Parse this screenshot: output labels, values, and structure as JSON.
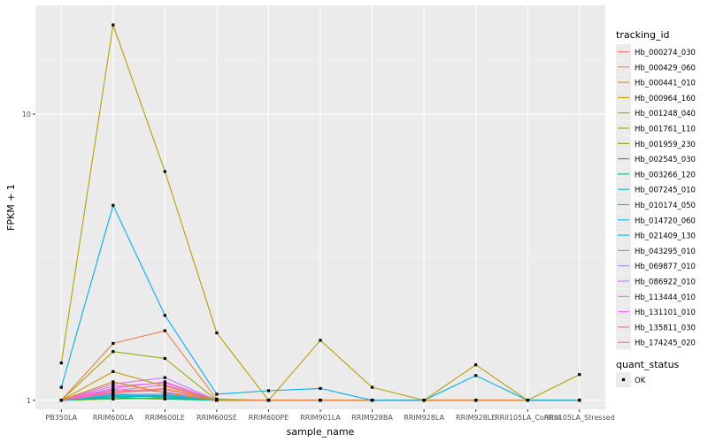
{
  "chart_data": {
    "type": "line",
    "title": "",
    "xlabel": "sample_name",
    "ylabel": "FPKM + 1",
    "y_scale": "log10",
    "ylim": [
      0.93,
      24
    ],
    "y_ticks": [
      1,
      10
    ],
    "y_tick_labels": [
      "1",
      "10"
    ],
    "grid": true,
    "legend_position": "right",
    "categories": [
      "PB350LA",
      "RRIM600LA",
      "RRIM600LE",
      "RRIM600SE",
      "RRIM600PE",
      "RRIM901LA",
      "RRIM928BA",
      "RRIM928LA",
      "RRIM928LE",
      "RRII105LA_Control",
      "RRII105LA_Stressed"
    ],
    "legend_title": "tracking_id",
    "legend_items": [
      {
        "name": "Hb_000274_030",
        "color": "#F8766D"
      },
      {
        "name": "Hb_000429_060",
        "color": "#EE8043"
      },
      {
        "name": "Hb_000441_010",
        "color": "#E18A00"
      },
      {
        "name": "Hb_000964_160",
        "color": "#CC9600"
      },
      {
        "name": "Hb_001248_040",
        "color": "#B4A000"
      },
      {
        "name": "Hb_001761_110",
        "color": "#98A900"
      },
      {
        "name": "Hb_001959_230",
        "color": "#72B000"
      },
      {
        "name": "Hb_002545_030",
        "color": "#00B64B"
      },
      {
        "name": "Hb_003266_120",
        "color": "#00BB83"
      },
      {
        "name": "Hb_007245_010",
        "color": "#00BEAA"
      },
      {
        "name": "Hb_010174_050",
        "color": "#00BFC4"
      },
      {
        "name": "Hb_014720_060",
        "color": "#00BAE0"
      },
      {
        "name": "Hb_021409_130",
        "color": "#00AEF6"
      },
      {
        "name": "Hb_043295_010",
        "color": "#619CFF"
      },
      {
        "name": "Hb_069877_010",
        "color": "#9E8CFF"
      },
      {
        "name": "Hb_086922_010",
        "color": "#C77CFF"
      },
      {
        "name": "Hb_113444_010",
        "color": "#E76BF3"
      },
      {
        "name": "Hb_131101_010",
        "color": "#F864D8"
      },
      {
        "name": "Hb_135811_030",
        "color": "#FF64B0"
      },
      {
        "name": "Hb_174245_020",
        "color": "#FF6C91"
      }
    ],
    "series": [
      {
        "name": "Hb_001248_040",
        "color": "#B4A000",
        "values": [
          1.35,
          20.5,
          6.3,
          1.72,
          1.0,
          1.62,
          1.11,
          1.0,
          1.33,
          1.0,
          1.23
        ]
      },
      {
        "name": "Hb_021409_130",
        "color": "#00AEF6",
        "values": [
          1.11,
          4.8,
          1.98,
          1.05,
          1.08,
          1.1,
          1.0,
          1.0,
          1.22,
          1.0,
          1.0
        ]
      },
      {
        "name": "Hb_000429_060",
        "color": "#EE8043",
        "values": [
          1.0,
          1.58,
          1.75,
          1.01,
          1.0,
          1.0,
          1.0,
          1.0,
          1.0,
          1.0,
          1.0
        ]
      },
      {
        "name": "Hb_001761_110",
        "color": "#98A900",
        "values": [
          1.0,
          1.48,
          1.4,
          1.0,
          1.0,
          1.0,
          1.0,
          1.0,
          1.0,
          1.0,
          1.0
        ]
      },
      {
        "name": "Hb_000964_160",
        "color": "#CC9600",
        "values": [
          1.0,
          1.26,
          1.12,
          1.0,
          1.0,
          1.0,
          1.0,
          1.0,
          1.0,
          1.0,
          1.0
        ]
      },
      {
        "name": "Hb_000441_010",
        "color": "#E18A00",
        "values": [
          1.0,
          1.16,
          1.06,
          1.0,
          1.0,
          1.0,
          1.0,
          1.0,
          1.0,
          1.0,
          1.0
        ]
      },
      {
        "name": "Hb_086922_010",
        "color": "#C77CFF",
        "values": [
          1.0,
          1.14,
          1.2,
          1.0,
          1.0,
          1.0,
          1.0,
          1.0,
          1.0,
          1.0,
          1.0
        ]
      },
      {
        "name": "Hb_113444_010",
        "color": "#E76BF3",
        "values": [
          1.0,
          1.12,
          1.15,
          1.0,
          1.0,
          1.0,
          1.0,
          1.0,
          1.0,
          1.0,
          1.0
        ]
      },
      {
        "name": "Hb_131101_010",
        "color": "#F864D8",
        "values": [
          1.0,
          1.1,
          1.16,
          1.0,
          1.0,
          1.0,
          1.0,
          1.0,
          1.0,
          1.0,
          1.0
        ]
      },
      {
        "name": "Hb_135811_030",
        "color": "#FF64B0",
        "values": [
          1.0,
          1.08,
          1.13,
          1.0,
          1.0,
          1.0,
          1.0,
          1.0,
          1.0,
          1.0,
          1.0
        ]
      },
      {
        "name": "Hb_174245_020",
        "color": "#FF6C91",
        "values": [
          1.0,
          1.07,
          1.1,
          1.0,
          1.0,
          1.0,
          1.0,
          1.0,
          1.0,
          1.0,
          1.0
        ]
      },
      {
        "name": "Hb_000274_030",
        "color": "#F8766D",
        "values": [
          1.0,
          1.06,
          1.09,
          1.0,
          1.0,
          1.0,
          1.0,
          1.0,
          1.0,
          1.0,
          1.0
        ]
      },
      {
        "name": "Hb_069877_010",
        "color": "#9E8CFF",
        "values": [
          1.0,
          1.09,
          1.07,
          1.0,
          1.0,
          1.0,
          1.0,
          1.0,
          1.0,
          1.0,
          1.0
        ]
      },
      {
        "name": "Hb_043295_010",
        "color": "#619CFF",
        "values": [
          1.0,
          1.05,
          1.05,
          1.0,
          1.0,
          1.0,
          1.0,
          1.0,
          1.0,
          1.0,
          1.0
        ]
      },
      {
        "name": "Hb_014720_060",
        "color": "#00BAE0",
        "values": [
          1.0,
          1.04,
          1.04,
          1.0,
          1.0,
          1.0,
          1.0,
          1.0,
          1.0,
          1.0,
          1.0
        ]
      },
      {
        "name": "Hb_010174_050",
        "color": "#00BFC4",
        "values": [
          1.0,
          1.03,
          1.03,
          1.0,
          1.0,
          1.0,
          1.0,
          1.0,
          1.0,
          1.0,
          1.0
        ]
      },
      {
        "name": "Hb_007245_010",
        "color": "#00BEAA",
        "values": [
          1.0,
          1.05,
          1.02,
          1.0,
          1.0,
          1.0,
          1.0,
          1.0,
          1.0,
          1.0,
          1.0
        ]
      },
      {
        "name": "Hb_003266_120",
        "color": "#00BB83",
        "values": [
          1.0,
          1.02,
          1.04,
          1.0,
          1.0,
          1.0,
          1.0,
          1.0,
          1.0,
          1.0,
          1.0
        ]
      },
      {
        "name": "Hb_002545_030",
        "color": "#00B64B",
        "values": [
          1.0,
          1.02,
          1.01,
          1.0,
          1.0,
          1.0,
          1.0,
          1.0,
          1.0,
          1.0,
          1.0
        ]
      },
      {
        "name": "Hb_001959_230",
        "color": "#72B000",
        "values": [
          1.0,
          1.01,
          1.02,
          1.0,
          1.0,
          1.0,
          1.0,
          1.0,
          1.0,
          1.0,
          1.0
        ]
      }
    ],
    "shape_legend": {
      "title": "quant_status",
      "items": [
        {
          "label": "OK"
        }
      ]
    },
    "colors": {
      "panel": "#EBEBEB",
      "grid_major": "#FFFFFF",
      "grid_minor": "#F5F5F5",
      "point": "#000000"
    }
  }
}
